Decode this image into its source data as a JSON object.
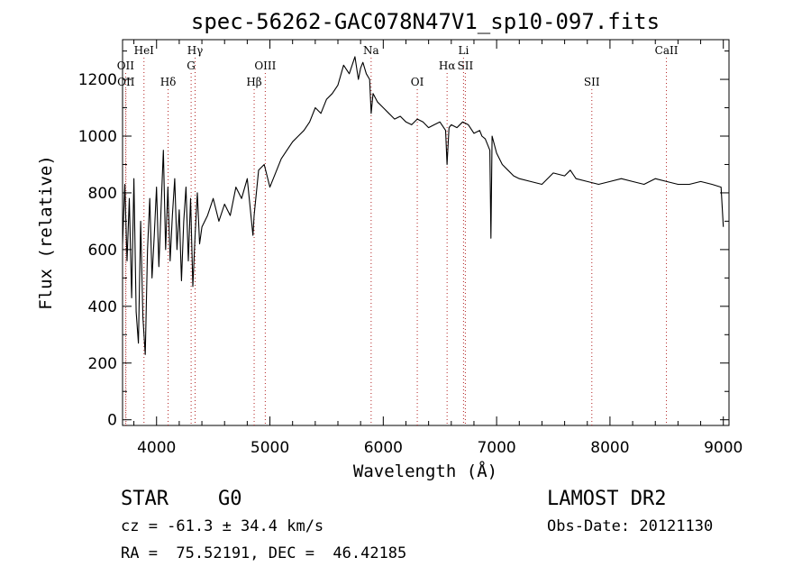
{
  "chart_data": {
    "type": "line",
    "title": "spec-56262-GAC078N47V1_sp10-097.fits",
    "xlabel": "Wavelength (Å)",
    "ylabel": "Flux (relative)",
    "xlim": [
      3700,
      9050
    ],
    "ylim": [
      -20,
      1340
    ],
    "xticks": [
      4000,
      5000,
      6000,
      7000,
      8000,
      9000
    ],
    "yticks": [
      0,
      200,
      400,
      600,
      800,
      1000,
      1200
    ],
    "grid": false,
    "series": [
      {
        "x": [
          3700,
          3720,
          3740,
          3760,
          3780,
          3800,
          3820,
          3840,
          3860,
          3880,
          3900,
          3920,
          3940,
          3960,
          3980,
          4000,
          4020,
          4040,
          4060,
          4080,
          4100,
          4120,
          4140,
          4160,
          4180,
          4200,
          4220,
          4240,
          4260,
          4280,
          4300,
          4320,
          4340,
          4360,
          4380,
          4400,
          4450,
          4500,
          4550,
          4600,
          4650,
          4700,
          4750,
          4800,
          4850,
          4861,
          4900,
          4950,
          5000,
          5050,
          5100,
          5150,
          5200,
          5250,
          5300,
          5350,
          5400,
          5450,
          5500,
          5550,
          5600,
          5650,
          5700,
          5750,
          5780,
          5800,
          5820,
          5850,
          5880,
          5893,
          5910,
          5950,
          6000,
          6050,
          6100,
          6150,
          6200,
          6250,
          6300,
          6350,
          6400,
          6450,
          6500,
          6550,
          6563,
          6580,
          6600,
          6650,
          6700,
          6750,
          6800,
          6850,
          6870,
          6900,
          6920,
          6940,
          6950,
          6960,
          7000,
          7050,
          7100,
          7150,
          7200,
          7300,
          7400,
          7500,
          7600,
          7650,
          7700,
          7800,
          7900,
          8000,
          8100,
          8200,
          8300,
          8400,
          8500,
          8600,
          8700,
          8800,
          8900,
          8980,
          9000
        ],
        "values": [
          620,
          830,
          560,
          780,
          430,
          850,
          380,
          270,
          700,
          360,
          230,
          600,
          780,
          500,
          650,
          820,
          540,
          750,
          950,
          600,
          820,
          560,
          720,
          850,
          600,
          740,
          490,
          700,
          820,
          560,
          780,
          470,
          650,
          800,
          620,
          680,
          720,
          780,
          700,
          760,
          720,
          820,
          780,
          850,
          650,
          720,
          880,
          900,
          820,
          870,
          920,
          950,
          980,
          1000,
          1020,
          1050,
          1100,
          1080,
          1130,
          1150,
          1180,
          1250,
          1220,
          1280,
          1200,
          1240,
          1260,
          1220,
          1200,
          1080,
          1150,
          1120,
          1100,
          1080,
          1060,
          1070,
          1050,
          1040,
          1060,
          1050,
          1030,
          1040,
          1050,
          1020,
          900,
          1030,
          1040,
          1030,
          1050,
          1040,
          1010,
          1020,
          1000,
          990,
          970,
          950,
          640,
          1000,
          940,
          900,
          880,
          860,
          850,
          840,
          830,
          870,
          860,
          880,
          850,
          840,
          830,
          840,
          850,
          840,
          830,
          850,
          840,
          830,
          830,
          840,
          830,
          820,
          680
        ]
      }
    ],
    "line_markers": [
      {
        "name": "OII",
        "wavelength": 3727,
        "row": 2
      },
      {
        "name": "OII",
        "wavelength": 3730,
        "row": 3
      },
      {
        "name": "HeI",
        "wavelength": 3889,
        "row": 1
      },
      {
        "name": "Hδ",
        "wavelength": 4102,
        "row": 3
      },
      {
        "name": "Hγ",
        "wavelength": 4340,
        "row": 1
      },
      {
        "name": "G",
        "wavelength": 4305,
        "row": 2
      },
      {
        "name": "Hβ",
        "wavelength": 4861,
        "row": 3
      },
      {
        "name": "OIII",
        "wavelength": 4959,
        "row": 2
      },
      {
        "name": "Na",
        "wavelength": 5893,
        "row": 1
      },
      {
        "name": "OI",
        "wavelength": 6300,
        "row": 3
      },
      {
        "name": "Li",
        "wavelength": 6708,
        "row": 1
      },
      {
        "name": "Hα",
        "wavelength": 6563,
        "row": 2
      },
      {
        "name": "SII",
        "wavelength": 6724,
        "row": 2
      },
      {
        "name": "SII",
        "wavelength": 7840,
        "row": 3
      },
      {
        "name": "CaII",
        "wavelength": 8498,
        "row": 1
      }
    ]
  },
  "info": {
    "object_class": "STAR",
    "subclass": "G0",
    "survey": "LAMOST DR2",
    "velocity": "cz = -61.3 ± 34.4 km/s",
    "obs_date": "Obs-Date: 20121130",
    "coords": "RA =  75.52191, DEC =  46.42185"
  }
}
